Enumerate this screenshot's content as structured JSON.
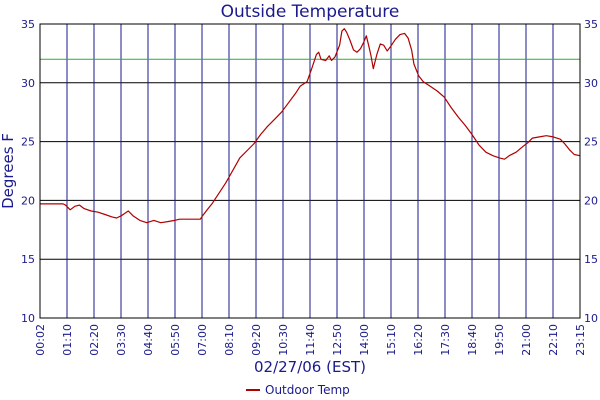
{
  "chart_data": {
    "type": "line",
    "title": "Outside Temperature",
    "xlabel": "02/27/06 (EST)",
    "ylabel": "Degrees F",
    "ylim": [
      10,
      35
    ],
    "y_ticks": [
      10,
      15,
      20,
      25,
      30,
      35
    ],
    "x_ticks": [
      "00:02",
      "01:10",
      "02:20",
      "03:30",
      "04:40",
      "05:50",
      "07:00",
      "08:10",
      "09:20",
      "10:30",
      "11:40",
      "12:50",
      "14:00",
      "15:10",
      "16:20",
      "17:30",
      "18:40",
      "19:50",
      "21:00",
      "22:10",
      "23:15"
    ],
    "grid": true,
    "reference_line": {
      "value": 32,
      "color": "#33aa33"
    },
    "legend_position": "bottom-center",
    "series": [
      {
        "name": "Outdoor Temp",
        "color": "#b00000",
        "values": [
          [
            0.0,
            19.7
          ],
          [
            0.4,
            19.7
          ],
          [
            0.8,
            19.7
          ],
          [
            1.0,
            19.7
          ],
          [
            1.1,
            19.6
          ],
          [
            1.3,
            19.2
          ],
          [
            1.5,
            19.5
          ],
          [
            1.7,
            19.6
          ],
          [
            1.9,
            19.3
          ],
          [
            2.2,
            19.1
          ],
          [
            2.5,
            19.0
          ],
          [
            2.8,
            18.8
          ],
          [
            3.1,
            18.6
          ],
          [
            3.3,
            18.5
          ],
          [
            3.5,
            18.7
          ],
          [
            3.8,
            19.1
          ],
          [
            4.0,
            18.7
          ],
          [
            4.3,
            18.3
          ],
          [
            4.6,
            18.1
          ],
          [
            4.9,
            18.3
          ],
          [
            5.2,
            18.1
          ],
          [
            5.5,
            18.2
          ],
          [
            5.8,
            18.3
          ],
          [
            6.0,
            18.4
          ],
          [
            6.3,
            18.4
          ],
          [
            6.6,
            18.4
          ],
          [
            6.9,
            18.4
          ],
          [
            7.0,
            18.7
          ],
          [
            7.2,
            19.2
          ],
          [
            7.4,
            19.7
          ],
          [
            7.6,
            20.3
          ],
          [
            7.8,
            20.9
          ],
          [
            8.0,
            21.5
          ],
          [
            8.2,
            22.2
          ],
          [
            8.4,
            22.9
          ],
          [
            8.6,
            23.6
          ],
          [
            8.9,
            24.2
          ],
          [
            9.2,
            24.8
          ],
          [
            9.5,
            25.6
          ],
          [
            9.8,
            26.3
          ],
          [
            10.1,
            26.9
          ],
          [
            10.4,
            27.5
          ],
          [
            10.7,
            28.3
          ],
          [
            11.0,
            29.1
          ],
          [
            11.2,
            29.7
          ],
          [
            11.5,
            30.1
          ],
          [
            11.7,
            31.2
          ],
          [
            11.9,
            32.4
          ],
          [
            12.0,
            32.6
          ],
          [
            12.1,
            32.0
          ],
          [
            12.3,
            31.9
          ],
          [
            12.45,
            32.3
          ],
          [
            12.55,
            31.9
          ],
          [
            12.7,
            32.2
          ],
          [
            12.9,
            33.2
          ],
          [
            13.0,
            34.4
          ],
          [
            13.1,
            34.6
          ],
          [
            13.2,
            34.3
          ],
          [
            13.35,
            33.6
          ],
          [
            13.5,
            32.8
          ],
          [
            13.65,
            32.6
          ],
          [
            13.8,
            32.9
          ],
          [
            13.95,
            33.5
          ],
          [
            14.05,
            34.0
          ],
          [
            14.15,
            33.2
          ],
          [
            14.25,
            32.3
          ],
          [
            14.35,
            31.2
          ],
          [
            14.5,
            32.4
          ],
          [
            14.65,
            33.3
          ],
          [
            14.8,
            33.2
          ],
          [
            14.95,
            32.7
          ],
          [
            15.1,
            33.1
          ],
          [
            15.3,
            33.7
          ],
          [
            15.5,
            34.1
          ],
          [
            15.7,
            34.2
          ],
          [
            15.85,
            33.8
          ],
          [
            16.0,
            32.8
          ],
          [
            16.1,
            31.6
          ],
          [
            16.3,
            30.6
          ],
          [
            16.5,
            30.1
          ],
          [
            16.8,
            29.7
          ],
          [
            17.1,
            29.3
          ],
          [
            17.4,
            28.8
          ],
          [
            17.7,
            27.9
          ],
          [
            18.0,
            27.1
          ],
          [
            18.3,
            26.4
          ],
          [
            18.6,
            25.6
          ],
          [
            18.9,
            24.7
          ],
          [
            19.2,
            24.1
          ],
          [
            19.5,
            23.8
          ],
          [
            19.8,
            23.6
          ],
          [
            20.0,
            23.5
          ],
          [
            20.2,
            23.8
          ],
          [
            20.5,
            24.1
          ],
          [
            20.8,
            24.6
          ],
          [
            21.0,
            24.9
          ],
          [
            21.2,
            25.3
          ],
          [
            21.5,
            25.4
          ],
          [
            21.8,
            25.5
          ],
          [
            22.1,
            25.4
          ],
          [
            22.4,
            25.2
          ],
          [
            22.6,
            24.8
          ],
          [
            22.8,
            24.3
          ],
          [
            23.0,
            23.9
          ],
          [
            23.25,
            23.8
          ]
        ]
      }
    ]
  }
}
